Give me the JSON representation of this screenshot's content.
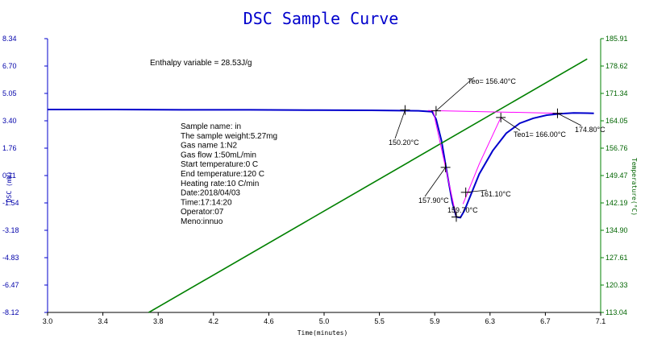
{
  "chart_data": {
    "type": "line",
    "title": "DSC Sample Curve",
    "xlabel": "Time(minutes)",
    "ylabel_left": "DSC (mW)",
    "ylabel_right": "Temperature(°C)",
    "xlim": [
      3.0,
      7.1
    ],
    "ylim_left": [
      -8.12,
      8.34
    ],
    "ylim_right": [
      113.04,
      185.91
    ],
    "x_ticks": [
      "3.0",
      "3.4",
      "3.8",
      "4.2",
      "4.6",
      "5.0",
      "5.5",
      "5.9",
      "6.3",
      "6.7",
      "7.1"
    ],
    "y_ticks_left": [
      "8.34",
      "6.70",
      "5.05",
      "3.40",
      "1.76",
      "0.11",
      "-1.54",
      "-3.18",
      "-4.83",
      "-6.47",
      "-8.12"
    ],
    "y_ticks_right": [
      "185.91",
      "178.62",
      "171.34",
      "164.05",
      "156.76",
      "149.47",
      "142.19",
      "134.90",
      "127.61",
      "120.33",
      "113.04"
    ],
    "grid": false,
    "series": [
      {
        "color": "#0000cc",
        "axis": "left",
        "x": [
          3.0,
          3.5,
          4.0,
          4.5,
          5.0,
          5.4,
          5.75,
          5.85,
          5.88,
          5.92,
          5.96,
          6.0,
          6.03,
          6.06,
          6.09,
          6.14,
          6.2,
          6.3,
          6.4,
          6.5,
          6.6,
          6.7,
          6.8,
          6.9,
          7.0,
          7.05
        ],
        "y": [
          4.08,
          4.08,
          4.06,
          4.06,
          4.04,
          4.03,
          4.0,
          3.95,
          3.5,
          2.2,
          0.3,
          -1.5,
          -2.38,
          -2.42,
          -2.0,
          -1.0,
          0.2,
          1.6,
          2.65,
          3.25,
          3.55,
          3.74,
          3.83,
          3.87,
          3.86,
          3.85
        ]
      },
      {
        "color": "#008000",
        "axis": "right",
        "x": [
          3.75,
          7.0
        ],
        "y": [
          113.04,
          180.5
        ]
      },
      {
        "color": "#ff00ff",
        "axis": "left",
        "x": [
          5.82,
          6.8
        ],
        "y": [
          4.02,
          3.85
        ]
      },
      {
        "color": "#ff00ff",
        "axis": "left",
        "x": [
          5.86,
          5.98,
          6.03
        ],
        "y": [
          3.95,
          -0.5,
          -2.38
        ]
      },
      {
        "color": "#ff00ff",
        "axis": "left",
        "x": [
          6.08,
          6.2,
          6.36
        ],
        "y": [
          -1.6,
          0.8,
          3.6
        ]
      }
    ],
    "annotations": [
      {
        "text": "Enthalpy variable = 28.53J/g"
      },
      {
        "text": "Teo= 156.40°C",
        "x": 5.88,
        "y": 4.0
      },
      {
        "text": "150.20°C",
        "x": 5.65,
        "y": 4.05
      },
      {
        "text": "157.90°C",
        "x": 5.95,
        "y": 0.6
      },
      {
        "text": "159.70°C",
        "x": 6.03,
        "y": -2.38
      },
      {
        "text": "161.10°C",
        "x": 6.1,
        "y": -0.9
      },
      {
        "text": "Teo1= 166.00°C",
        "x": 6.36,
        "y": 3.6
      },
      {
        "text": "174.80°C",
        "x": 6.78,
        "y": 3.85
      }
    ]
  },
  "sample_info": [
    "Sample name: in",
    "The sample weight:5.27mg",
    "Gas name 1:N2",
    "Gas flow 1:50mL/min",
    "Start temperature:0 C",
    "End temperature:120 C",
    "Heating rate:10 C/min",
    "Date:2018/04/03",
    "Time:17:14:20",
    "Operator:07",
    "Meno:innuo"
  ]
}
